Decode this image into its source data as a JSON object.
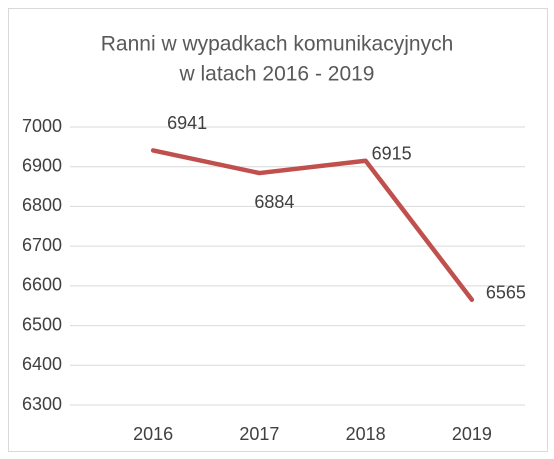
{
  "chart_data": {
    "type": "line",
    "title": [
      "Ranni w wypadkach komunikacyjnych",
      "w latach 2016 - 2019"
    ],
    "categories": [
      "2016",
      "2017",
      "2018",
      "2019"
    ],
    "series": [
      {
        "name": "Ranni",
        "color": "#c0504d",
        "values": [
          6941,
          6884,
          6915,
          6565
        ]
      }
    ],
    "ylim": [
      6300,
      7000
    ],
    "yticks": [
      6300,
      6400,
      6500,
      6600,
      6700,
      6800,
      6900,
      7000
    ],
    "grid": true
  }
}
